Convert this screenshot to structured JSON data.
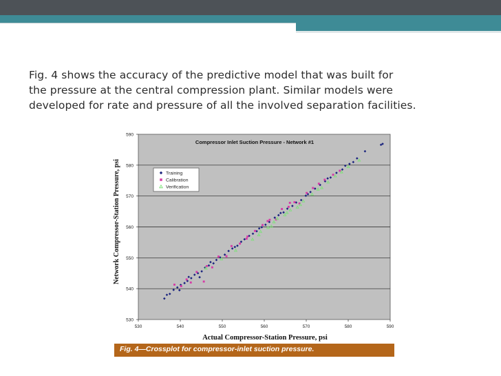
{
  "slide": {
    "paragraph_lines": [
      "Fig. 4 shows the accuracy of the predictive model that was built for",
      "the pressure at the central compression plant. Similar models were",
      "developed for rate and pressure of all the involved separation facilities."
    ],
    "caption": "Fig. 4—Crossplot for compressor-inlet suction pressure.",
    "colors": {
      "top_bar": "#4d5257",
      "accent": "#3e8b96",
      "caption_bar": "#b4661a",
      "plot_area": "#c0c0c0"
    }
  },
  "chart_data": {
    "type": "scatter",
    "title": "Compressor Inlet Suction Pressure - Network #1",
    "xlabel": "Actual Compressor-Station Pressure, psi",
    "ylabel": "Network Compressor-Station Pressure, psi",
    "xlim": [
      530,
      590
    ],
    "ylim": [
      530,
      590
    ],
    "xticks": [
      "530",
      "540",
      "550",
      "560",
      "570",
      "580",
      "590"
    ],
    "yticks": [
      "530",
      "540",
      "550",
      "560",
      "570",
      "580",
      "590"
    ],
    "grid": "horizontal",
    "legend_position": "top-left",
    "series": [
      {
        "name": "Training",
        "color": "#1a237e",
        "marker": "diamond",
        "points": [
          [
            536.2,
            536.8
          ],
          [
            536.8,
            538.0
          ],
          [
            537.5,
            538.3
          ],
          [
            538.4,
            539.6
          ],
          [
            539.3,
            540.4
          ],
          [
            540.1,
            541.2
          ],
          [
            541.0,
            541.8
          ],
          [
            541.7,
            542.5
          ],
          [
            542.6,
            543.4
          ],
          [
            543.4,
            544.5
          ],
          [
            544.2,
            545.0
          ],
          [
            545.1,
            545.6
          ],
          [
            545.9,
            546.8
          ],
          [
            546.8,
            547.5
          ],
          [
            547.9,
            548.2
          ],
          [
            548.6,
            549.3
          ],
          [
            549.5,
            550.1
          ],
          [
            550.6,
            551.0
          ],
          [
            551.5,
            552.2
          ],
          [
            552.4,
            553.0
          ],
          [
            553.6,
            553.9
          ],
          [
            554.5,
            555.2
          ],
          [
            555.3,
            556.0
          ],
          [
            556.4,
            557.1
          ],
          [
            557.3,
            557.8
          ],
          [
            558.2,
            558.6
          ],
          [
            559.4,
            559.9
          ],
          [
            560.3,
            560.7
          ],
          [
            561.2,
            561.6
          ],
          [
            562.5,
            563.0
          ],
          [
            563.4,
            563.8
          ],
          [
            564.6,
            564.7
          ],
          [
            565.5,
            565.9
          ],
          [
            566.7,
            566.8
          ],
          [
            567.6,
            567.9
          ],
          [
            568.8,
            568.7
          ],
          [
            569.9,
            570.1
          ],
          [
            571.0,
            571.3
          ],
          [
            572.1,
            572.4
          ],
          [
            573.3,
            573.6
          ],
          [
            574.5,
            574.8
          ],
          [
            575.8,
            576.0
          ],
          [
            577.2,
            577.5
          ],
          [
            578.6,
            578.6
          ],
          [
            580.3,
            580.4
          ],
          [
            582.1,
            582.2
          ],
          [
            584.0,
            584.5
          ],
          [
            587.8,
            586.6
          ],
          [
            588.2,
            586.9
          ],
          [
            539.8,
            539.5
          ],
          [
            542.0,
            543.8
          ],
          [
            544.6,
            543.7
          ],
          [
            547.2,
            548.6
          ],
          [
            553.0,
            553.5
          ],
          [
            558.8,
            559.5
          ],
          [
            563.9,
            564.5
          ],
          [
            570.4,
            570.6
          ],
          [
            575.1,
            575.7
          ],
          [
            579.3,
            579.8
          ],
          [
            581.2,
            581.0
          ]
        ]
      },
      {
        "name": "Calibration",
        "color": "#d63aa6",
        "marker": "square",
        "points": [
          [
            538.6,
            541.3
          ],
          [
            540.2,
            540.8
          ],
          [
            541.5,
            543.0
          ],
          [
            542.5,
            542.0
          ],
          [
            543.9,
            545.4
          ],
          [
            545.6,
            542.3
          ],
          [
            546.3,
            547.3
          ],
          [
            547.6,
            546.9
          ],
          [
            549.1,
            550.4
          ],
          [
            551.0,
            550.5
          ],
          [
            552.2,
            553.8
          ],
          [
            554.2,
            554.6
          ],
          [
            556.0,
            556.9
          ],
          [
            557.8,
            558.7
          ],
          [
            559.6,
            560.6
          ],
          [
            561.3,
            562.3
          ],
          [
            562.8,
            562.4
          ],
          [
            564.2,
            565.8
          ],
          [
            565.8,
            566.5
          ],
          [
            567.2,
            568.0
          ],
          [
            568.4,
            567.6
          ],
          [
            570.1,
            571.0
          ],
          [
            571.6,
            572.6
          ],
          [
            573.0,
            574.0
          ],
          [
            574.4,
            575.3
          ],
          [
            576.4,
            576.9
          ],
          [
            578.0,
            578.2
          ],
          [
            560.8,
            561.9
          ],
          [
            555.8,
            556.2
          ],
          [
            566.1,
            567.8
          ]
        ]
      },
      {
        "name": "Verification",
        "color": "#7fe07a",
        "marker": "triangle",
        "points": [
          [
            546.1,
            546.6
          ],
          [
            549.8,
            549.6
          ],
          [
            553.2,
            552.4
          ],
          [
            557.2,
            556.0
          ],
          [
            558.7,
            557.4
          ],
          [
            560.9,
            559.8
          ],
          [
            562.3,
            561.6
          ],
          [
            563.1,
            562.7
          ],
          [
            564.9,
            563.9
          ],
          [
            566.2,
            565.5
          ],
          [
            567.9,
            566.4
          ],
          [
            569.3,
            568.4
          ],
          [
            571.4,
            570.6
          ],
          [
            573.7,
            572.7
          ],
          [
            575.2,
            574.5
          ],
          [
            576.9,
            576.5
          ],
          [
            578.4,
            577.8
          ],
          [
            580.0,
            579.5
          ],
          [
            582.6,
            581.6
          ],
          [
            559.1,
            558.5
          ],
          [
            561.7,
            560.2
          ],
          [
            565.4,
            564.6
          ],
          [
            568.6,
            567.2
          ],
          [
            572.8,
            572.2
          ]
        ]
      }
    ]
  }
}
